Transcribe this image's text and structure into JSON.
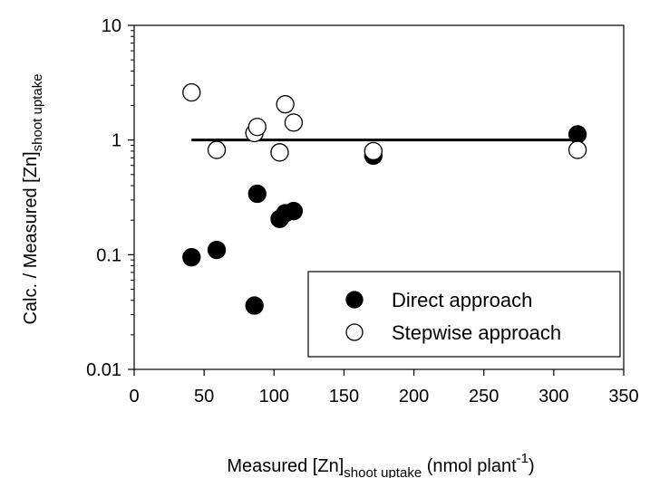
{
  "chart_data": {
    "type": "scatter",
    "xlabel": {
      "main": "Measured [Zn]",
      "sub": "shoot uptake",
      "unit_pre": " (nmol plant",
      "sup": "-1",
      "unit_post": ")"
    },
    "ylabel": {
      "main": "Calc. / Measured [Zn]",
      "sub": "shoot uptake"
    },
    "xlim": [
      0,
      350
    ],
    "ylim": [
      0.01,
      10
    ],
    "yscale": "log",
    "x_ticks": [
      "0",
      "50",
      "100",
      "150",
      "200",
      "250",
      "300",
      "350"
    ],
    "y_ticks": [
      "0.01",
      "0.1",
      "1",
      "10"
    ],
    "legend_position": "bottom-right",
    "series": [
      {
        "name": "Direct approach",
        "marker": "filled-circle",
        "color": "#000000",
        "points": [
          {
            "x": 41,
            "y": 0.095
          },
          {
            "x": 59,
            "y": 0.11
          },
          {
            "x": 86,
            "y": 0.036
          },
          {
            "x": 88,
            "y": 0.34
          },
          {
            "x": 104,
            "y": 0.205
          },
          {
            "x": 108,
            "y": 0.23
          },
          {
            "x": 114,
            "y": 0.24
          },
          {
            "x": 171,
            "y": 0.73
          },
          {
            "x": 317,
            "y": 1.12
          }
        ]
      },
      {
        "name": "Stepwise approach",
        "marker": "open-circle",
        "color": "#000000",
        "points": [
          {
            "x": 41,
            "y": 2.6
          },
          {
            "x": 59,
            "y": 0.82
          },
          {
            "x": 86,
            "y": 1.15
          },
          {
            "x": 88,
            "y": 1.3
          },
          {
            "x": 104,
            "y": 0.78
          },
          {
            "x": 108,
            "y": 2.05
          },
          {
            "x": 114,
            "y": 1.42
          },
          {
            "x": 171,
            "y": 0.8
          },
          {
            "x": 317,
            "y": 0.82
          }
        ]
      }
    ],
    "reference_line": {
      "x_start": 41,
      "x_end": 317,
      "y": 1
    }
  }
}
